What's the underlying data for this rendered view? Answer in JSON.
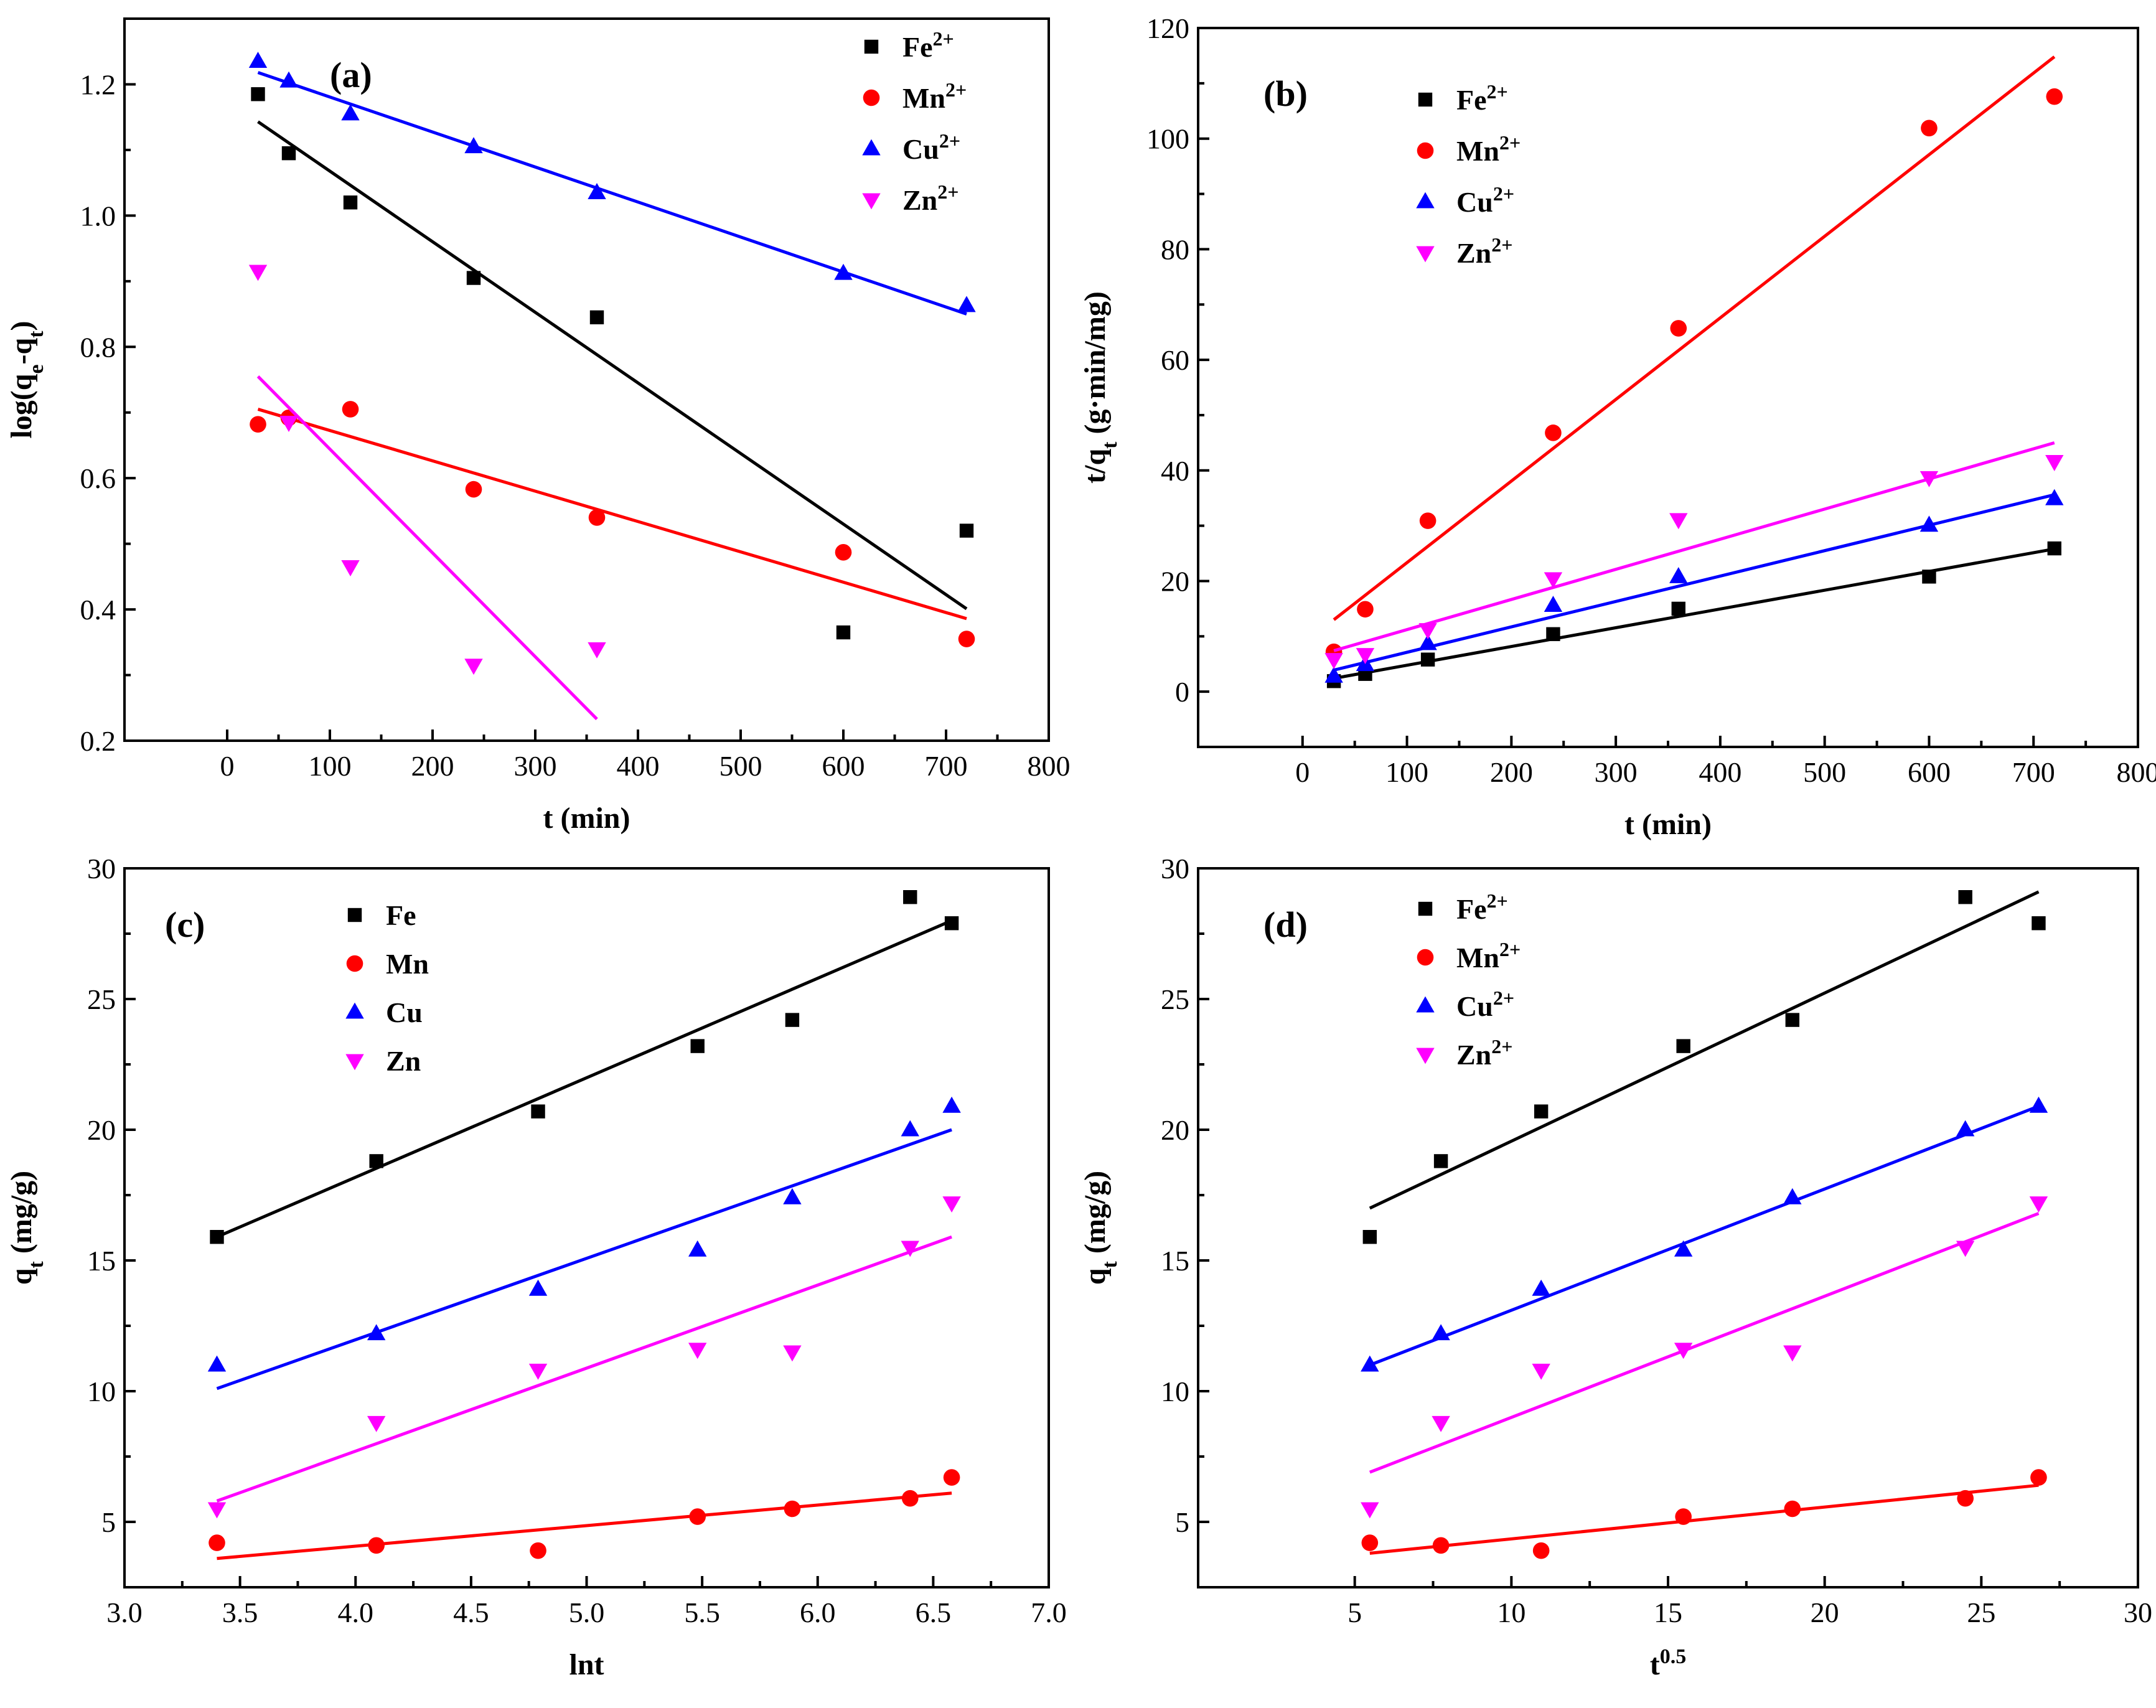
{
  "figure": {
    "description_panels": [
      "a",
      "b",
      "c",
      "d"
    ]
  },
  "chart_data": [
    {
      "type": "scatter",
      "panel_label": "(a)",
      "xlabel": "t (min)",
      "ylabel": "log(q_e-q_t)",
      "xlim": [
        -100,
        800
      ],
      "ylim": [
        0.2,
        1.3
      ],
      "xticks": [
        0,
        100,
        200,
        300,
        400,
        500,
        600,
        700,
        800
      ],
      "yticks": [
        0.2,
        0.4,
        0.6,
        0.8,
        1.0,
        1.2
      ],
      "ytick_decimals": 1,
      "legend_position": "top-right",
      "series": [
        {
          "name": "Fe",
          "legend": "Fe",
          "sup": "2+",
          "marker": "square",
          "color": "#000000",
          "x": [
            30,
            60,
            120,
            240,
            360,
            600,
            720
          ],
          "y": [
            1.185,
            1.095,
            1.02,
            0.905,
            0.845,
            0.365,
            0.52
          ],
          "fit": [
            [
              30,
              1.143
            ],
            [
              720,
              0.401
            ]
          ]
        },
        {
          "name": "Mn",
          "legend": "Mn",
          "sup": "2+",
          "marker": "circle",
          "color": "#ff0000",
          "x": [
            30,
            60,
            120,
            240,
            360,
            600,
            720
          ],
          "y": [
            0.682,
            0.692,
            0.705,
            0.583,
            0.54,
            0.487,
            0.355
          ],
          "fit": [
            [
              30,
              0.705
            ],
            [
              720,
              0.386
            ]
          ]
        },
        {
          "name": "Cu",
          "legend": "Cu",
          "sup": "2+",
          "marker": "triangle-up",
          "color": "#0000ff",
          "x": [
            30,
            60,
            120,
            240,
            360,
            600,
            720
          ],
          "y": [
            1.235,
            1.205,
            1.155,
            1.105,
            1.035,
            0.912,
            0.863
          ],
          "fit": [
            [
              30,
              1.218
            ],
            [
              720,
              0.85
            ]
          ]
        },
        {
          "name": "Zn",
          "legend": "Zn",
          "sup": "2+",
          "marker": "triangle-down",
          "color": "#ff00ff",
          "x": [
            30,
            60,
            120,
            240,
            360
          ],
          "y": [
            0.915,
            0.685,
            0.465,
            0.315,
            0.34
          ],
          "fit": [
            [
              30,
              0.755
            ],
            [
              360,
              0.233
            ]
          ]
        }
      ]
    },
    {
      "type": "scatter",
      "panel_label": "(b)",
      "xlabel": "t (min)",
      "ylabel": "t/q_t (g·min/mg)",
      "xlim": [
        -100,
        800
      ],
      "ylim": [
        -10,
        120
      ],
      "xticks": [
        0,
        100,
        200,
        300,
        400,
        500,
        600,
        700,
        800
      ],
      "yticks": [
        0,
        20,
        40,
        60,
        80,
        100,
        120
      ],
      "ytick_decimals": 0,
      "legend_position": "top-left",
      "series": [
        {
          "name": "Fe",
          "legend": "Fe",
          "sup": "2+",
          "marker": "square",
          "color": "#000000",
          "x": [
            30,
            60,
            120,
            240,
            360,
            600,
            720
          ],
          "y": [
            1.9,
            3.2,
            5.8,
            10.4,
            15.0,
            20.8,
            25.9
          ],
          "fit": [
            [
              30,
              2.4
            ],
            [
              720,
              25.8
            ]
          ]
        },
        {
          "name": "Mn",
          "legend": "Mn",
          "sup": "2+",
          "marker": "circle",
          "color": "#ff0000",
          "x": [
            30,
            60,
            120,
            240,
            360,
            600,
            720
          ],
          "y": [
            7.2,
            14.9,
            30.9,
            46.8,
            65.7,
            101.9,
            107.6
          ],
          "fit": [
            [
              30,
              13.0
            ],
            [
              720,
              114.8
            ]
          ]
        },
        {
          "name": "Cu",
          "legend": "Cu",
          "sup": "2+",
          "marker": "triangle-up",
          "color": "#0000ff",
          "x": [
            30,
            60,
            120,
            240,
            360,
            600,
            720
          ],
          "y": [
            2.8,
            4.9,
            8.7,
            15.6,
            20.8,
            30.1,
            34.9
          ],
          "fit": [
            [
              30,
              3.9
            ],
            [
              720,
              35.6
            ]
          ]
        },
        {
          "name": "Zn",
          "legend": "Zn",
          "sup": "2+",
          "marker": "triangle-down",
          "color": "#ff00ff",
          "x": [
            30,
            60,
            120,
            240,
            360,
            600,
            720
          ],
          "y": [
            5.8,
            6.7,
            11.2,
            20.4,
            31.1,
            38.7,
            41.6
          ],
          "fit": [
            [
              30,
              7.4
            ],
            [
              720,
              45.0
            ]
          ]
        }
      ]
    },
    {
      "type": "scatter",
      "panel_label": "(c)",
      "xlabel": "lnt",
      "ylabel": "q_t (mg/g)",
      "xlim": [
        3.0,
        7.0
      ],
      "ylim": [
        2.5,
        30
      ],
      "xticks": [
        3.0,
        3.5,
        4.0,
        4.5,
        5.0,
        5.5,
        6.0,
        6.5,
        7.0
      ],
      "xtick_decimals": 1,
      "yticks": [
        5,
        10,
        15,
        20,
        25,
        30
      ],
      "ytick_decimals": 0,
      "legend_position": "top-left",
      "series": [
        {
          "name": "Fe",
          "legend": "Fe",
          "sup": "",
          "marker": "square",
          "color": "#000000",
          "x": [
            3.4,
            4.09,
            4.79,
            5.48,
            5.89,
            6.4,
            6.58
          ],
          "y": [
            15.9,
            18.8,
            20.7,
            23.2,
            24.2,
            28.9,
            27.9
          ],
          "fit": [
            [
              3.4,
              15.9
            ],
            [
              6.58,
              28.0
            ]
          ]
        },
        {
          "name": "Mn",
          "legend": "Mn",
          "sup": "",
          "marker": "circle",
          "color": "#ff0000",
          "x": [
            3.4,
            4.09,
            4.79,
            5.48,
            5.89,
            6.4,
            6.58
          ],
          "y": [
            4.2,
            4.1,
            3.9,
            5.2,
            5.5,
            5.9,
            6.7
          ],
          "fit": [
            [
              3.4,
              3.6
            ],
            [
              6.58,
              6.1
            ]
          ]
        },
        {
          "name": "Cu",
          "legend": "Cu",
          "sup": "",
          "marker": "triangle-up",
          "color": "#0000ff",
          "x": [
            3.4,
            4.09,
            4.79,
            5.48,
            5.89,
            6.4,
            6.58
          ],
          "y": [
            11.0,
            12.2,
            13.9,
            15.4,
            17.4,
            20.0,
            20.9
          ],
          "fit": [
            [
              3.4,
              10.1
            ],
            [
              6.58,
              20.0
            ]
          ]
        },
        {
          "name": "Zn",
          "legend": "Zn",
          "sup": "",
          "marker": "triangle-down",
          "color": "#ff00ff",
          "x": [
            3.4,
            4.09,
            4.79,
            5.48,
            5.89,
            6.4,
            6.58
          ],
          "y": [
            5.5,
            8.8,
            10.8,
            11.6,
            11.5,
            15.5,
            17.2
          ],
          "fit": [
            [
              3.4,
              5.8
            ],
            [
              6.58,
              15.9
            ]
          ]
        }
      ]
    },
    {
      "type": "scatter",
      "panel_label": "(d)",
      "xlabel": "t",
      "xlabel_sup": "0.5",
      "ylabel": "q_t (mg/g)",
      "xlim": [
        0,
        30
      ],
      "ylim": [
        2.5,
        30
      ],
      "xticks": [
        5,
        10,
        15,
        20,
        25,
        30
      ],
      "xtick_decimals": 0,
      "yticks": [
        5,
        10,
        15,
        20,
        25,
        30
      ],
      "ytick_decimals": 0,
      "legend_position": "top-left",
      "series": [
        {
          "name": "Fe",
          "legend": "Fe",
          "sup": "2+",
          "marker": "square",
          "color": "#000000",
          "x": [
            5.48,
            7.75,
            10.95,
            15.49,
            18.97,
            24.49,
            26.83
          ],
          "y": [
            15.9,
            18.8,
            20.7,
            23.2,
            24.2,
            28.9,
            27.9
          ],
          "fit": [
            [
              5.48,
              17.0
            ],
            [
              26.83,
              29.1
            ]
          ]
        },
        {
          "name": "Mn",
          "legend": "Mn",
          "sup": "2+",
          "marker": "circle",
          "color": "#ff0000",
          "x": [
            5.48,
            7.75,
            10.95,
            15.49,
            18.97,
            24.49,
            26.83
          ],
          "y": [
            4.2,
            4.1,
            3.9,
            5.2,
            5.5,
            5.9,
            6.7
          ],
          "fit": [
            [
              5.48,
              3.8
            ],
            [
              26.83,
              6.4
            ]
          ]
        },
        {
          "name": "Cu",
          "legend": "Cu",
          "sup": "2+",
          "marker": "triangle-up",
          "color": "#0000ff",
          "x": [
            5.48,
            7.75,
            10.95,
            15.49,
            18.97,
            24.49,
            26.83
          ],
          "y": [
            11.0,
            12.2,
            13.9,
            15.4,
            17.4,
            20.0,
            20.9
          ],
          "fit": [
            [
              5.48,
              11.0
            ],
            [
              26.83,
              20.9
            ]
          ]
        },
        {
          "name": "Zn",
          "legend": "Zn",
          "sup": "2+",
          "marker": "triangle-down",
          "color": "#ff00ff",
          "x": [
            5.48,
            7.75,
            10.95,
            15.49,
            18.97,
            24.49,
            26.83
          ],
          "y": [
            5.5,
            8.8,
            10.8,
            11.6,
            11.5,
            15.5,
            17.2
          ],
          "fit": [
            [
              5.48,
              6.9
            ],
            [
              26.83,
              16.8
            ]
          ]
        }
      ]
    }
  ]
}
